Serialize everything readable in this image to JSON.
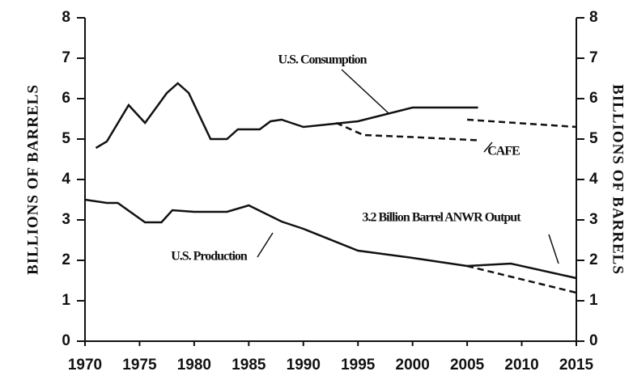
{
  "chart_data": {
    "type": "line",
    "y_label": "BILLIONS OF BARRELS",
    "y2_label": "BILLIONS OF BARRELS",
    "annotations": [
      "U.S. Consumption",
      "U.S. Production",
      "3.2 Billion Barrel ANWR Output",
      "CAFE"
    ],
    "xlim": [
      1970,
      2015
    ],
    "xticks": [
      1970,
      1975,
      1980,
      1985,
      1990,
      1995,
      2000,
      2005,
      2010,
      2015
    ],
    "ylim": [
      0,
      8
    ],
    "yticks": [
      0,
      1,
      2,
      3,
      4,
      5,
      6,
      7,
      8
    ],
    "y2lim": [
      0,
      8
    ],
    "y2ticks": [
      0,
      1,
      2,
      3,
      4,
      5,
      6,
      7,
      8
    ],
    "series": [
      {
        "name": "U.S. Consumption",
        "color": "#111",
        "dash": false,
        "x": [
          1971,
          1972,
          1974,
          1975.5,
          1977.5,
          1978.5,
          1979.5,
          1981.5,
          1983,
          1984,
          1986,
          1987,
          1988,
          1990,
          1995,
          2000,
          2006
        ],
        "values": [
          4.78,
          4.94,
          5.84,
          5.4,
          6.14,
          6.38,
          6.14,
          5.0,
          5.0,
          5.24,
          5.24,
          5.44,
          5.48,
          5.3,
          5.44,
          5.78,
          5.78
        ]
      },
      {
        "color": "#111",
        "dash": true,
        "x": [
          2005,
          2015
        ],
        "values": [
          5.48,
          5.3
        ]
      },
      {
        "name": "CAFE",
        "color": "#111",
        "dash": true,
        "x": [
          1993,
          1995.5,
          2000,
          2006
        ],
        "values": [
          5.4,
          5.1,
          5.05,
          4.97
        ]
      },
      {
        "name": "U.S. Production",
        "color": "#111",
        "dash": false,
        "x": [
          1970,
          1972,
          1973,
          1975.5,
          1977,
          1978,
          1980,
          1983,
          1985,
          1988,
          1990,
          1995,
          2000,
          2005
        ],
        "values": [
          3.5,
          3.42,
          3.42,
          2.94,
          2.94,
          3.24,
          3.2,
          3.2,
          3.36,
          2.96,
          2.78,
          2.24,
          2.06,
          1.86
        ]
      },
      {
        "name": "3.2 Billion Barrel ANWR Output",
        "color": "#111",
        "dash": false,
        "x": [
          2005,
          2009,
          2015
        ],
        "values": [
          1.86,
          1.92,
          1.56
        ]
      },
      {
        "color": "#111",
        "dash": true,
        "x": [
          2005,
          2015
        ],
        "values": [
          1.86,
          1.2
        ]
      }
    ]
  }
}
